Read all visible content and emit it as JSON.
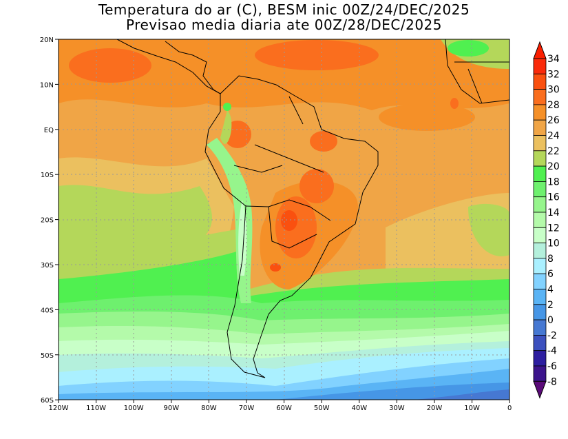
{
  "title_line1": "Temperatura do ar (C), BESM inic 00Z/24/DEC/2025",
  "title_line2": "Previsao media diaria ate 00Z/28/DEC/2025",
  "lat_labels": [
    "20N",
    "10N",
    "EQ",
    "10S",
    "20S",
    "30S",
    "40S",
    "50S",
    "60S"
  ],
  "lon_labels": [
    "120W",
    "110W",
    "100W",
    "90W",
    "80W",
    "70W",
    "60W",
    "50W",
    "40W",
    "30W",
    "20W",
    "10W",
    "0"
  ],
  "colorbar": {
    "labels": [
      "34",
      "32",
      "30",
      "28",
      "26",
      "24",
      "22",
      "20",
      "18",
      "16",
      "14",
      "12",
      "10",
      "8",
      "6",
      "4",
      "2",
      "0",
      "-2",
      "-4",
      "-6",
      "-8"
    ],
    "colors": [
      "#fa2a0a",
      "#fa500f",
      "#fa6e1e",
      "#f59028",
      "#f0a546",
      "#ebc05f",
      "#b4d75a",
      "#50f050",
      "#6ef06e",
      "#96f58c",
      "#b4faaa",
      "#c8ffc8",
      "#b4f0dc",
      "#aaf0ff",
      "#82d2ff",
      "#5ab4f5",
      "#4696e6",
      "#4678d2",
      "#3c50be",
      "#2d1ea0",
      "#3c148c"
    ],
    "over_color": "#fa1e00",
    "under_color": "#5a0a78"
  }
}
